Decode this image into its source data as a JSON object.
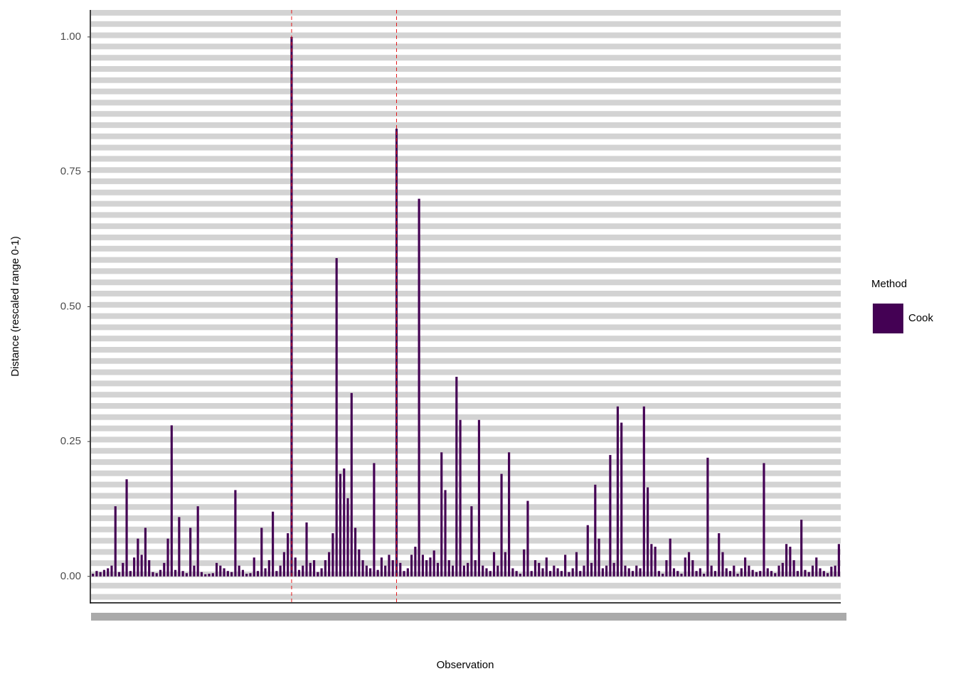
{
  "chart_data": {
    "type": "bar",
    "x_label": "Observation",
    "y_label": "Distance (rescaled range 0-1)",
    "legend_title": "Method",
    "series": [
      {
        "name": "Cook",
        "color": "#440154",
        "values": [
          0.005,
          0.01,
          0.008,
          0.012,
          0.015,
          0.02,
          0.13,
          0.008,
          0.025,
          0.18,
          0.01,
          0.035,
          0.07,
          0.04,
          0.09,
          0.03,
          0.008,
          0.006,
          0.012,
          0.025,
          0.07,
          0.28,
          0.012,
          0.11,
          0.01,
          0.006,
          0.09,
          0.02,
          0.13,
          0.008,
          0.004,
          0.005,
          0.006,
          0.025,
          0.02,
          0.015,
          0.01,
          0.008,
          0.16,
          0.02,
          0.012,
          0.005,
          0.006,
          0.035,
          0.01,
          0.09,
          0.015,
          0.03,
          0.12,
          0.01,
          0.02,
          0.045,
          0.08,
          1.0,
          0.035,
          0.012,
          0.02,
          0.1,
          0.025,
          0.03,
          0.008,
          0.015,
          0.03,
          0.045,
          0.08,
          0.59,
          0.19,
          0.2,
          0.145,
          0.34,
          0.09,
          0.05,
          0.03,
          0.02,
          0.015,
          0.21,
          0.012,
          0.035,
          0.02,
          0.04,
          0.03,
          0.83,
          0.025,
          0.01,
          0.015,
          0.04,
          0.055,
          0.7,
          0.04,
          0.03,
          0.035,
          0.048,
          0.025,
          0.23,
          0.16,
          0.03,
          0.02,
          0.37,
          0.29,
          0.02,
          0.025,
          0.13,
          0.03,
          0.29,
          0.02,
          0.015,
          0.01,
          0.045,
          0.02,
          0.19,
          0.045,
          0.23,
          0.015,
          0.01,
          0.005,
          0.05,
          0.14,
          0.01,
          0.03,
          0.025,
          0.015,
          0.035,
          0.01,
          0.02,
          0.015,
          0.01,
          0.04,
          0.008,
          0.015,
          0.045,
          0.01,
          0.02,
          0.095,
          0.025,
          0.17,
          0.07,
          0.015,
          0.02,
          0.225,
          0.025,
          0.315,
          0.285,
          0.02,
          0.015,
          0.01,
          0.02,
          0.015,
          0.315,
          0.165,
          0.06,
          0.055,
          0.01,
          0.005,
          0.03,
          0.07,
          0.015,
          0.01,
          0.005,
          0.035,
          0.045,
          0.03,
          0.01,
          0.015,
          0.005,
          0.22,
          0.02,
          0.01,
          0.08,
          0.045,
          0.015,
          0.01,
          0.02,
          0.005,
          0.015,
          0.035,
          0.02,
          0.012,
          0.008,
          0.01,
          0.21,
          0.015,
          0.01,
          0.006,
          0.02,
          0.025,
          0.06,
          0.055,
          0.03,
          0.01,
          0.105,
          0.012,
          0.008,
          0.02,
          0.035,
          0.015,
          0.01,
          0.006,
          0.018,
          0.02,
          0.06
        ]
      }
    ],
    "highlight": [
      54,
      82
    ],
    "highlight_color": "#e31a1c",
    "xlim": [
      0.5,
      200.5
    ],
    "ylim": [
      -0.049,
      1.05
    ],
    "yticks": [
      {
        "value": 0,
        "label": "0.00"
      },
      {
        "value": 0.25,
        "label": "0.25"
      },
      {
        "value": 0.5,
        "label": "0.50"
      },
      {
        "value": 0.75,
        "label": "0.75"
      },
      {
        "value": 1,
        "label": "1.00"
      }
    ]
  }
}
